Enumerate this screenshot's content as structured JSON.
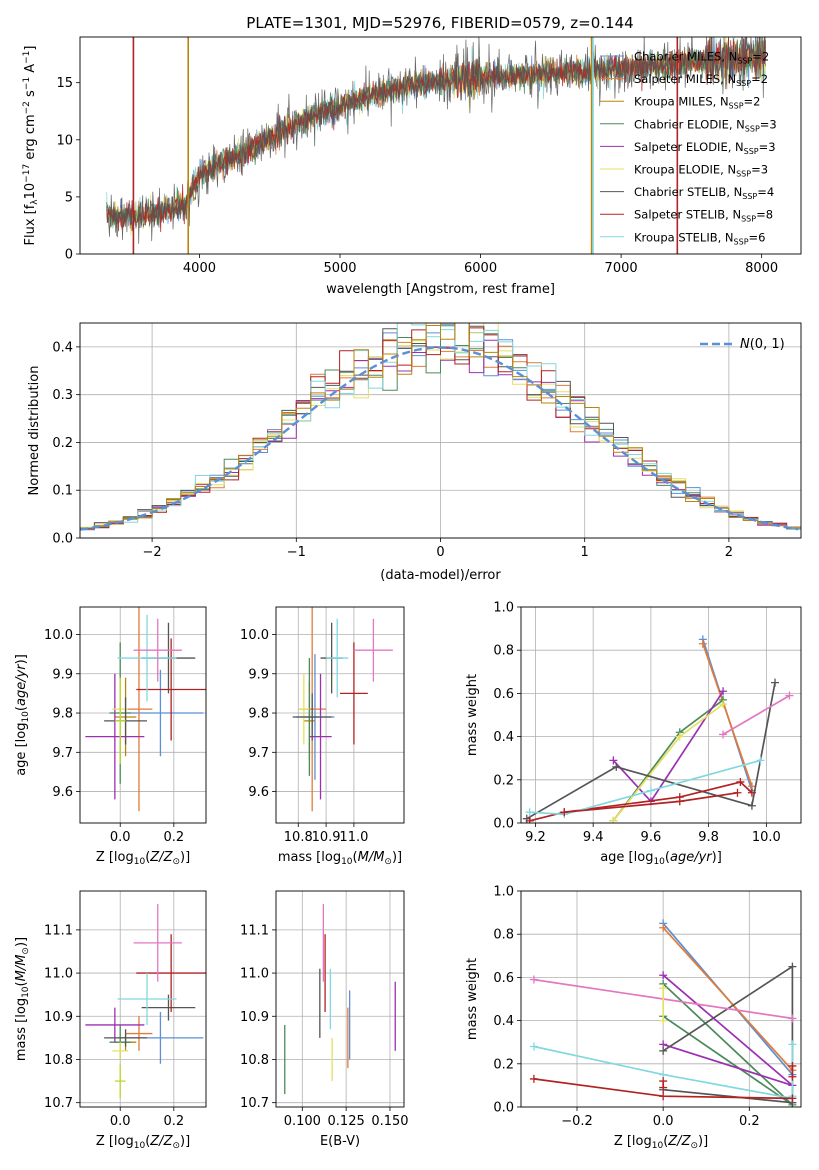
{
  "figure_title": "PLATE=1301, MJD=52976, FIBERID=0579, z=0.144",
  "colors": {
    "Chabrier MILES": "#5b8fd6",
    "Salpeter MILES": "#e07b39",
    "Kroupa MILES": "#b8860b",
    "Chabrier ELODIE": "#4a8a5a",
    "Salpeter ELODIE": "#9b30b0",
    "Kroupa ELODIE": "#e6e060",
    "Chabrier STELIB": "#555555",
    "Salpeter STELIB": "#b22222",
    "Kroupa STELIB": "#80d8e0",
    "pink": "#e377c2",
    "lime": "#bcd62f",
    "gaussian": "#5b8fd6"
  },
  "chart_data": [
    {
      "id": "spectrum",
      "type": "line",
      "title": "PLATE=1301, MJD=52976, FIBERID=0579, z=0.144",
      "xlabel": "wavelength [Angstrom, rest frame]",
      "ylabel": "Flux [f_λ 10^-17 erg cm^-2 s^-1 A^-1]",
      "xlim": [
        3150,
        8280
      ],
      "ylim": [
        0,
        19
      ],
      "xticks": [
        4000,
        5000,
        6000,
        7000,
        8000
      ],
      "yticks": [
        0,
        5,
        10,
        15
      ],
      "grid": false,
      "legend_position": "top-right",
      "x_range_data": [
        3340,
        8030
      ],
      "continuum_points": [
        [
          3340,
          3.3
        ],
        [
          3600,
          3.4
        ],
        [
          3900,
          4.3
        ],
        [
          4000,
          7.0
        ],
        [
          4300,
          8.8
        ],
        [
          4700,
          11.5
        ],
        [
          5000,
          13.0
        ],
        [
          5200,
          13.8
        ],
        [
          5500,
          14.8
        ],
        [
          6000,
          15.5
        ],
        [
          6500,
          15.8
        ],
        [
          7000,
          16.2
        ],
        [
          7500,
          16.8
        ],
        [
          8030,
          17.2
        ]
      ],
      "legend": [
        {
          "name": "Chabrier MILES",
          "label": "Chabrier MILES, N",
          "sub": "SSP",
          "n": "=2"
        },
        {
          "name": "Salpeter MILES",
          "label": "Salpeter MILES, N",
          "sub": "SSP",
          "n": "=2"
        },
        {
          "name": "Kroupa MILES",
          "label": "Kroupa MILES, N",
          "sub": "SSP",
          "n": "=2"
        },
        {
          "name": "Chabrier ELODIE",
          "label": "Chabrier ELODIE, N",
          "sub": "SSP",
          "n": "=3"
        },
        {
          "name": "Salpeter ELODIE",
          "label": "Salpeter ELODIE, N",
          "sub": "SSP",
          "n": "=3"
        },
        {
          "name": "Kroupa ELODIE",
          "label": "Kroupa ELODIE, N",
          "sub": "SSP",
          "n": "=3"
        },
        {
          "name": "Chabrier STELIB",
          "label": "Chabrier STELIB, N",
          "sub": "SSP",
          "n": "=4"
        },
        {
          "name": "Salpeter STELIB",
          "label": "Salpeter STELIB, N",
          "sub": "SSP",
          "n": "=8"
        },
        {
          "name": "Kroupa STELIB",
          "label": "Kroupa STELIB, N",
          "sub": "SSP",
          "n": "=6"
        }
      ],
      "model_spans": {
        "Kroupa MILES": [
          3920,
          6790
        ],
        "Salpeter STELIB": [
          3530,
          7400
        ],
        "Kroupa STELIB": [
          3340,
          6800
        ],
        "Salpeter MILES": [
          3530,
          7400
        ]
      }
    },
    {
      "id": "residuals",
      "type": "step",
      "xlabel": "(data-model)/error",
      "ylabel": "Normed distribution",
      "xlim": [
        -2.5,
        2.5
      ],
      "ylim": [
        0,
        0.45
      ],
      "xticks": [
        -2,
        -1,
        0,
        1,
        2
      ],
      "yticks": [
        0.0,
        0.1,
        0.2,
        0.3,
        0.4
      ],
      "grid": true,
      "legend_position": "top-right",
      "gaussian_label": "N(0, 1)",
      "bin_width": 0.1
    },
    {
      "id": "age_vs_Z",
      "type": "errorbar",
      "xlabel": "Z [log10(Z/Z☉)]",
      "ylabel": "age [log10(age/yr)]",
      "xlim": [
        -0.15,
        0.32
      ],
      "ylim": [
        9.52,
        10.07
      ],
      "xticks": [
        0.0,
        0.2
      ],
      "yticks": [
        9.6,
        9.7,
        9.8,
        9.9,
        10.0
      ],
      "grid": true,
      "points": [
        {
          "c": "Chabrier MILES",
          "x": 0.15,
          "xe": 0.16,
          "y": 9.8,
          "ye": 0.11
        },
        {
          "c": "Salpeter MILES",
          "x": 0.07,
          "xe": 0.05,
          "y": 9.81,
          "ye": 0.26
        },
        {
          "c": "Kroupa MILES",
          "x": 0.02,
          "xe": 0.04,
          "y": 9.79,
          "ye": 0.1
        },
        {
          "c": "Chabrier ELODIE",
          "x": 0.0,
          "xe": 0.04,
          "y": 9.8,
          "ye": 0.18
        },
        {
          "c": "Salpeter ELODIE",
          "x": -0.02,
          "xe": 0.11,
          "y": 9.74,
          "ye": 0.16
        },
        {
          "c": "Kroupa ELODIE",
          "x": 0.0,
          "xe": 0.03,
          "y": 9.81,
          "ye": 0.07
        },
        {
          "c": "Chabrier STELIB",
          "x": 0.18,
          "xe": 0.1,
          "y": 9.94,
          "ye": 0.09
        },
        {
          "c": "Salpeter STELIB",
          "x": 0.19,
          "xe": 0.13,
          "y": 9.86,
          "ye": 0.13
        },
        {
          "c": "Kroupa STELIB",
          "x": 0.1,
          "xe": 0.11,
          "y": 9.94,
          "ye": 0.11
        },
        {
          "c": "pink",
          "x": 0.14,
          "xe": 0.09,
          "y": 9.96,
          "ye": 0.08
        },
        {
          "c": "Chabrier STELIB",
          "x": 0.02,
          "xe": 0.08,
          "y": 9.78,
          "ye": 0.06
        },
        {
          "c": "lime",
          "x": 0.0,
          "xe": 0.02,
          "y": 9.78,
          "ye": 0.11
        }
      ]
    },
    {
      "id": "age_vs_mass",
      "type": "errorbar",
      "xlabel": "mass [log10(M/M☉)]",
      "ylabel": "",
      "xlim": [
        10.72,
        11.18
      ],
      "ylim": [
        9.52,
        10.07
      ],
      "xticks": [
        10.8,
        10.9,
        11.0
      ],
      "yticks": [
        9.6,
        9.7,
        9.8,
        9.9,
        10.0
      ],
      "grid": true,
      "points": [
        {
          "c": "Chabrier MILES",
          "x": 10.86,
          "xe": 0.07,
          "y": 9.79,
          "ye": 0.16
        },
        {
          "c": "Salpeter MILES",
          "x": 10.85,
          "xe": 0.05,
          "y": 9.81,
          "ye": 0.26
        },
        {
          "c": "Kroupa MILES",
          "x": 10.84,
          "xe": 0.02,
          "y": 9.78,
          "ye": 0.1
        },
        {
          "c": "Chabrier ELODIE",
          "x": 10.84,
          "xe": 0.03,
          "y": 9.79,
          "ye": 0.15
        },
        {
          "c": "Salpeter ELODIE",
          "x": 10.88,
          "xe": 0.04,
          "y": 9.74,
          "ye": 0.16
        },
        {
          "c": "Kroupa ELODIE",
          "x": 10.82,
          "xe": 0.02,
          "y": 9.81,
          "ye": 0.09
        },
        {
          "c": "Chabrier STELIB",
          "x": 10.92,
          "xe": 0.04,
          "y": 9.94,
          "ye": 0.09
        },
        {
          "c": "Salpeter STELIB",
          "x": 11.0,
          "xe": 0.05,
          "y": 9.85,
          "ye": 0.13
        },
        {
          "c": "Kroupa STELIB",
          "x": 10.94,
          "xe": 0.04,
          "y": 9.94,
          "ye": 0.1
        },
        {
          "c": "pink",
          "x": 11.07,
          "xe": 0.07,
          "y": 9.96,
          "ye": 0.08
        },
        {
          "c": "Chabrier STELIB",
          "x": 10.85,
          "xe": 0.07,
          "y": 9.79,
          "ye": 0.06
        }
      ]
    },
    {
      "id": "mass_weight_vs_age",
      "type": "line",
      "xlabel": "age [log10(age/yr)]",
      "ylabel": "mass weight",
      "xlim": [
        9.15,
        10.12
      ],
      "ylim": [
        0,
        1.0
      ],
      "xticks": [
        9.2,
        9.4,
        9.6,
        9.8,
        10.0
      ],
      "yticks": [
        0.0,
        0.2,
        0.4,
        0.6,
        0.8,
        1.0
      ],
      "grid": true,
      "series": [
        {
          "c": "Chabrier MILES",
          "x": [
            9.78,
            9.95
          ],
          "y": [
            0.85,
            0.15
          ]
        },
        {
          "c": "Salpeter MILES",
          "x": [
            9.78,
            9.95
          ],
          "y": [
            0.83,
            0.17
          ]
        },
        {
          "c": "Chabrier ELODIE",
          "x": [
            9.47,
            9.7,
            9.85
          ],
          "y": [
            0.01,
            0.42,
            0.57
          ]
        },
        {
          "c": "Salpeter ELODIE",
          "x": [
            9.47,
            9.6,
            9.85
          ],
          "y": [
            0.29,
            0.1,
            0.61
          ]
        },
        {
          "c": "Kroupa ELODIE",
          "x": [
            9.47,
            9.7,
            9.85
          ],
          "y": [
            0.01,
            0.4,
            0.55
          ]
        },
        {
          "c": "Chabrier STELIB",
          "x": [
            9.17,
            9.48,
            9.95,
            10.03
          ],
          "y": [
            0.02,
            0.26,
            0.08,
            0.65
          ]
        },
        {
          "c": "Salpeter STELIB",
          "x": [
            9.18,
            9.3,
            9.7,
            9.91,
            9.95
          ],
          "y": [
            0.01,
            0.05,
            0.12,
            0.19,
            0.14
          ]
        },
        {
          "c": "Kroupa STELIB",
          "x": [
            9.18,
            9.3,
            9.6,
            9.98
          ],
          "y": [
            0.05,
            0.04,
            0.15,
            0.29
          ]
        },
        {
          "c": "pink",
          "x": [
            9.85,
            10.08
          ],
          "y": [
            0.41,
            0.59
          ]
        },
        {
          "c": "Salpeter STELIB",
          "x": [
            9.3,
            9.7,
            9.9
          ],
          "y": [
            0.05,
            0.1,
            0.14
          ]
        }
      ]
    },
    {
      "id": "mass_vs_Z",
      "type": "errorbar",
      "xlabel": "Z [log10(Z/Z☉)]",
      "ylabel": "mass [log10(M/M☉)]",
      "xlim": [
        -0.15,
        0.32
      ],
      "ylim": [
        10.69,
        11.19
      ],
      "xticks": [
        0.0,
        0.2
      ],
      "yticks": [
        10.7,
        10.8,
        10.9,
        11.0,
        11.1
      ],
      "grid": true,
      "points": [
        {
          "c": "Chabrier MILES",
          "x": 0.15,
          "xe": 0.16,
          "y": 10.85,
          "ye": 0.06
        },
        {
          "c": "Salpeter MILES",
          "x": 0.07,
          "xe": 0.05,
          "y": 10.86,
          "ye": 0.04
        },
        {
          "c": "Kroupa MILES",
          "x": 0.02,
          "xe": 0.04,
          "y": 10.84,
          "ye": 0.02
        },
        {
          "c": "Chabrier ELODIE",
          "x": 0.0,
          "xe": 0.04,
          "y": 10.84,
          "ye": 0.04
        },
        {
          "c": "Salpeter ELODIE",
          "x": -0.02,
          "xe": 0.11,
          "y": 10.88,
          "ye": 0.04
        },
        {
          "c": "Kroupa ELODIE",
          "x": 0.0,
          "xe": 0.03,
          "y": 10.82,
          "ye": 0.02
        },
        {
          "c": "Chabrier STELIB",
          "x": 0.18,
          "xe": 0.1,
          "y": 10.92,
          "ye": 0.03
        },
        {
          "c": "Salpeter STELIB",
          "x": 0.19,
          "xe": 0.13,
          "y": 11.0,
          "ye": 0.09
        },
        {
          "c": "Kroupa STELIB",
          "x": 0.1,
          "xe": 0.11,
          "y": 10.94,
          "ye": 0.06
        },
        {
          "c": "pink",
          "x": 0.14,
          "xe": 0.09,
          "y": 11.07,
          "ye": 0.09
        },
        {
          "c": "Chabrier STELIB",
          "x": 0.02,
          "xe": 0.08,
          "y": 10.85,
          "ye": 0.02
        },
        {
          "c": "lime",
          "x": 0.0,
          "xe": 0.02,
          "y": 10.75,
          "ye": 0.04
        }
      ]
    },
    {
      "id": "mass_vs_EBV",
      "type": "errorbar",
      "xlabel": "E(B-V)",
      "ylabel": "",
      "xlim": [
        0.085,
        0.158
      ],
      "ylim": [
        10.69,
        11.19
      ],
      "xticks": [
        0.1,
        0.125,
        0.15
      ],
      "yticks": [
        10.7,
        10.8,
        10.9,
        11.0,
        11.1
      ],
      "grid": true,
      "points": [
        {
          "c": "Chabrier ELODIE",
          "x": 0.09,
          "xe": 0,
          "y": 10.8,
          "ye": 0.08
        },
        {
          "c": "Chabrier STELIB",
          "x": 0.11,
          "xe": 0,
          "y": 10.93,
          "ye": 0.08
        },
        {
          "c": "Salpeter STELIB",
          "x": 0.113,
          "xe": 0,
          "y": 11.0,
          "ye": 0.09
        },
        {
          "c": "pink",
          "x": 0.112,
          "xe": 0,
          "y": 11.07,
          "ye": 0.09
        },
        {
          "c": "Kroupa STELIB",
          "x": 0.116,
          "xe": 0,
          "y": 10.94,
          "ye": 0.07
        },
        {
          "c": "Kroupa ELODIE",
          "x": 0.117,
          "xe": 0,
          "y": 10.8,
          "ye": 0.05
        },
        {
          "c": "Salpeter MILES",
          "x": 0.126,
          "xe": 0,
          "y": 10.85,
          "ye": 0.07
        },
        {
          "c": "Chabrier MILES",
          "x": 0.127,
          "xe": 0,
          "y": 10.88,
          "ye": 0.08
        },
        {
          "c": "Salpeter ELODIE",
          "x": 0.153,
          "xe": 0,
          "y": 10.9,
          "ye": 0.08
        }
      ]
    },
    {
      "id": "mass_weight_vs_Z",
      "type": "line",
      "xlabel": "Z [log10(Z/Z☉)]",
      "ylabel": "mass weight",
      "xlim": [
        -0.33,
        0.32
      ],
      "ylim": [
        0,
        1.0
      ],
      "xticks": [
        -0.2,
        0.0,
        0.2
      ],
      "yticks": [
        0.0,
        0.2,
        0.4,
        0.6,
        0.8,
        1.0
      ],
      "grid": true,
      "series": [
        {
          "c": "Chabrier MILES",
          "x": [
            0.0,
            0.3
          ],
          "y": [
            0.85,
            0.15
          ]
        },
        {
          "c": "Salpeter MILES",
          "x": [
            0.0,
            0.3
          ],
          "y": [
            0.83,
            0.17
          ]
        },
        {
          "c": "Chabrier ELODIE",
          "x": [
            0.0,
            0.3,
            0.0
          ],
          "y": [
            0.57,
            0.01,
            0.42
          ]
        },
        {
          "c": "Salpeter ELODIE",
          "x": [
            0.0,
            0.3,
            0.0
          ],
          "y": [
            0.61,
            0.1,
            0.29
          ]
        },
        {
          "c": "Chabrier STELIB",
          "x": [
            0.0,
            0.3,
            0.3,
            0.0
          ],
          "y": [
            0.26,
            0.65,
            0.02,
            0.08
          ]
        },
        {
          "c": "Kroupa STELIB",
          "x": [
            -0.3,
            0.0,
            0.3
          ],
          "y": [
            0.28,
            0.15,
            0.04
          ]
        },
        {
          "c": "Kroupa STELIB",
          "x": [
            0.3,
            0.3
          ],
          "y": [
            0.29,
            0.05
          ]
        },
        {
          "c": "pink",
          "x": [
            -0.3,
            0.3
          ],
          "y": [
            0.59,
            0.41
          ]
        },
        {
          "c": "Salpeter STELIB",
          "x": [
            -0.3,
            0.0,
            0.3
          ],
          "y": [
            0.13,
            0.05,
            0.04
          ]
        },
        {
          "c": "Salpeter STELIB",
          "x": [
            0.0,
            0.0
          ],
          "y": [
            0.12,
            0.09
          ]
        },
        {
          "c": "Salpeter STELIB",
          "x": [
            0.3,
            0.3
          ],
          "y": [
            0.19,
            0.14
          ]
        },
        {
          "c": "Kroupa ELODIE",
          "x": [
            0.0,
            0.0
          ],
          "y": [
            0.55,
            0.4
          ]
        }
      ]
    }
  ]
}
